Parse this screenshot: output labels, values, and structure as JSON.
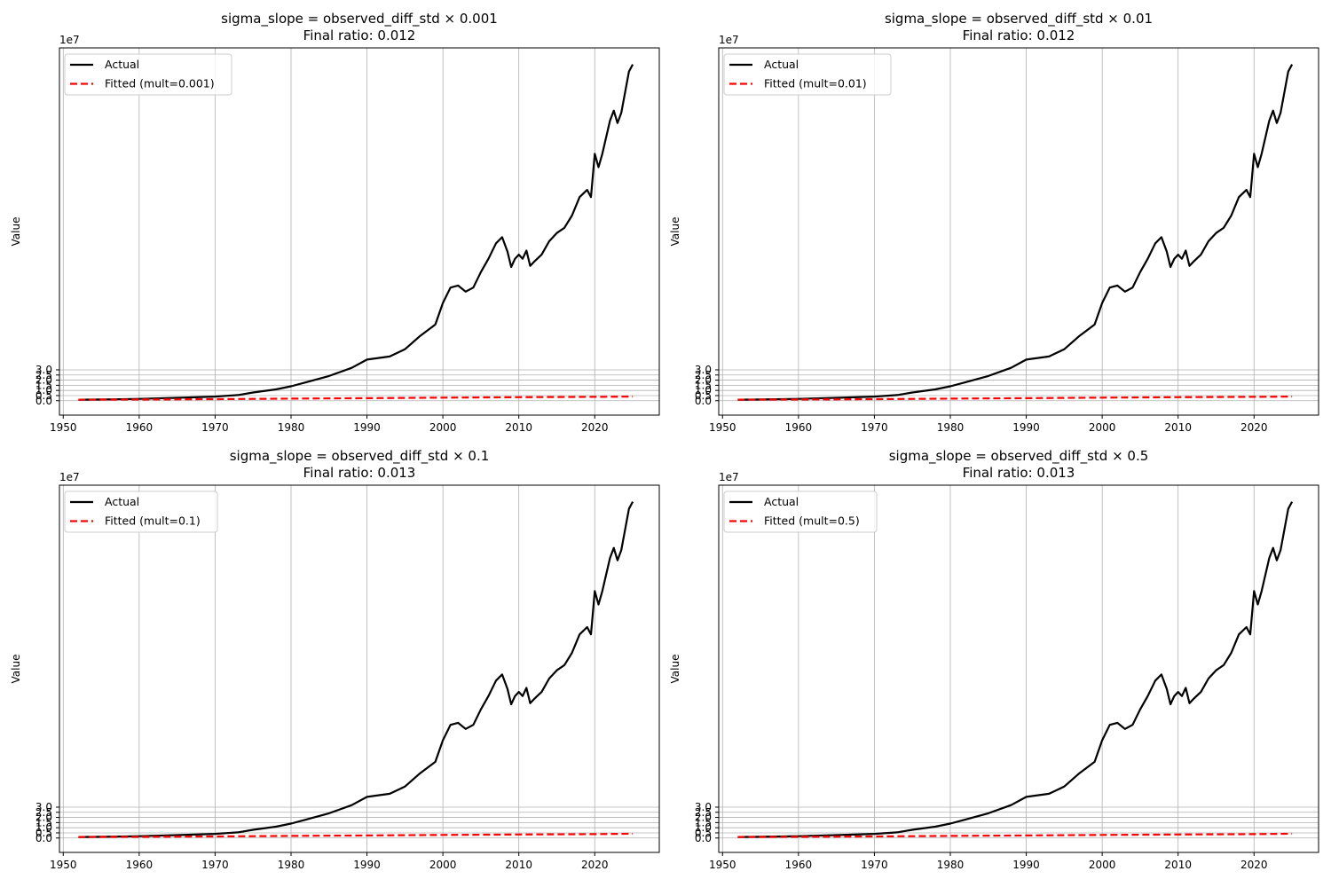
{
  "figure": {
    "colors": {
      "actual": "#000000",
      "fitted": "#ff0000",
      "grid": "#b0b0b0",
      "legend_border": "#cccccc"
    }
  },
  "chart_data": [
    {
      "type": "line",
      "title": "sigma_slope = observed_diff_std × 0.001",
      "subtitle": "Final ratio: 0.012",
      "ylabel": "Value",
      "xlabel": "",
      "offset_label": "1e7",
      "xlim": [
        1949.5,
        2028.5
      ],
      "ylim": [
        -1.4,
        34.3
      ],
      "x_ticks": [
        1950,
        1960,
        1970,
        1980,
        1990,
        2000,
        2010,
        2020
      ],
      "y_ticks": [
        0.0,
        0.5,
        1.0,
        1.5,
        2.0,
        2.5,
        3.0
      ],
      "y_tick_labels": [
        "0.0",
        "0.5",
        "1.0",
        "1.5",
        "2.0",
        "2.5",
        "3.0"
      ],
      "grid": true,
      "legend_position": "upper-left",
      "series": [
        {
          "name": "Actual",
          "style": "solid",
          "color": "#000000",
          "x": [
            1952,
            1955,
            1960,
            1965,
            1970,
            1973,
            1975,
            1978,
            1980,
            1982,
            1985,
            1988,
            1990,
            1993,
            1995,
            1997,
            1999,
            2000,
            2001,
            2002,
            2003,
            2004,
            2005,
            2006,
            2007,
            2007.8,
            2008.5,
            2009,
            2009.5,
            2010,
            2010.5,
            2011,
            2011.5,
            2012,
            2013,
            2014,
            2015,
            2016,
            2017,
            2018,
            2019,
            2019.5,
            2020,
            2020.5,
            2021,
            2022,
            2022.5,
            2023,
            2023.5,
            2024,
            2024.5,
            2025
          ],
          "y": [
            0.1,
            0.12,
            0.18,
            0.28,
            0.4,
            0.55,
            0.8,
            1.1,
            1.4,
            1.8,
            2.4,
            3.2,
            4.0,
            4.3,
            5.0,
            6.3,
            7.4,
            9.5,
            11.0,
            11.2,
            10.6,
            11.0,
            12.5,
            13.8,
            15.3,
            15.9,
            14.5,
            13.0,
            13.8,
            14.2,
            13.8,
            14.6,
            13.1,
            13.5,
            14.2,
            15.5,
            16.3,
            16.8,
            18.0,
            19.8,
            20.5,
            19.8,
            24.0,
            22.7,
            24.0,
            27.2,
            28.2,
            27.0,
            28.0,
            30.0,
            32.0,
            32.7
          ]
        },
        {
          "name": "Fitted (mult=0.001)",
          "style": "dashed",
          "color": "#ff0000",
          "x": [
            1952,
            1960,
            1970,
            1980,
            1990,
            2000,
            2010,
            2020,
            2025
          ],
          "y": [
            0.1,
            0.12,
            0.15,
            0.2,
            0.25,
            0.3,
            0.34,
            0.38,
            0.4
          ]
        }
      ]
    },
    {
      "type": "line",
      "title": "sigma_slope = observed_diff_std × 0.01",
      "subtitle": "Final ratio: 0.012",
      "ylabel": "Value",
      "xlabel": "",
      "offset_label": "1e7",
      "xlim": [
        1949.5,
        2028.5
      ],
      "ylim": [
        -1.4,
        34.3
      ],
      "x_ticks": [
        1950,
        1960,
        1970,
        1980,
        1990,
        2000,
        2010,
        2020
      ],
      "y_ticks": [
        0.0,
        0.5,
        1.0,
        1.5,
        2.0,
        2.5,
        3.0
      ],
      "y_tick_labels": [
        "0.0",
        "0.5",
        "1.0",
        "1.5",
        "2.0",
        "2.5",
        "3.0"
      ],
      "grid": true,
      "legend_position": "upper-left",
      "series": [
        {
          "name": "Actual",
          "style": "solid",
          "color": "#000000",
          "x": [
            1952,
            1955,
            1960,
            1965,
            1970,
            1973,
            1975,
            1978,
            1980,
            1982,
            1985,
            1988,
            1990,
            1993,
            1995,
            1997,
            1999,
            2000,
            2001,
            2002,
            2003,
            2004,
            2005,
            2006,
            2007,
            2007.8,
            2008.5,
            2009,
            2009.5,
            2010,
            2010.5,
            2011,
            2011.5,
            2012,
            2013,
            2014,
            2015,
            2016,
            2017,
            2018,
            2019,
            2019.5,
            2020,
            2020.5,
            2021,
            2022,
            2022.5,
            2023,
            2023.5,
            2024,
            2024.5,
            2025
          ],
          "y": [
            0.1,
            0.12,
            0.18,
            0.28,
            0.4,
            0.55,
            0.8,
            1.1,
            1.4,
            1.8,
            2.4,
            3.2,
            4.0,
            4.3,
            5.0,
            6.3,
            7.4,
            9.5,
            11.0,
            11.2,
            10.6,
            11.0,
            12.5,
            13.8,
            15.3,
            15.9,
            14.5,
            13.0,
            13.8,
            14.2,
            13.8,
            14.6,
            13.1,
            13.5,
            14.2,
            15.5,
            16.3,
            16.8,
            18.0,
            19.8,
            20.5,
            19.8,
            24.0,
            22.7,
            24.0,
            27.2,
            28.2,
            27.0,
            28.0,
            30.0,
            32.0,
            32.7
          ]
        },
        {
          "name": "Fitted (mult=0.01)",
          "style": "dashed",
          "color": "#ff0000",
          "x": [
            1952,
            1960,
            1970,
            1980,
            1990,
            2000,
            2010,
            2020,
            2025
          ],
          "y": [
            0.1,
            0.12,
            0.15,
            0.2,
            0.25,
            0.3,
            0.34,
            0.38,
            0.4
          ]
        }
      ]
    },
    {
      "type": "line",
      "title": "sigma_slope = observed_diff_std × 0.1",
      "subtitle": "Final ratio: 0.013",
      "ylabel": "Value",
      "xlabel": "",
      "offset_label": "1e7",
      "xlim": [
        1949.5,
        2028.5
      ],
      "ylim": [
        -1.4,
        34.3
      ],
      "x_ticks": [
        1950,
        1960,
        1970,
        1980,
        1990,
        2000,
        2010,
        2020
      ],
      "y_ticks": [
        0.0,
        0.5,
        1.0,
        1.5,
        2.0,
        2.5,
        3.0
      ],
      "y_tick_labels": [
        "0.0",
        "0.5",
        "1.0",
        "1.5",
        "2.0",
        "2.5",
        "3.0"
      ],
      "grid": true,
      "legend_position": "upper-left",
      "series": [
        {
          "name": "Actual",
          "style": "solid",
          "color": "#000000",
          "x": [
            1952,
            1955,
            1960,
            1965,
            1970,
            1973,
            1975,
            1978,
            1980,
            1982,
            1985,
            1988,
            1990,
            1993,
            1995,
            1997,
            1999,
            2000,
            2001,
            2002,
            2003,
            2004,
            2005,
            2006,
            2007,
            2007.8,
            2008.5,
            2009,
            2009.5,
            2010,
            2010.5,
            2011,
            2011.5,
            2012,
            2013,
            2014,
            2015,
            2016,
            2017,
            2018,
            2019,
            2019.5,
            2020,
            2020.5,
            2021,
            2022,
            2022.5,
            2023,
            2023.5,
            2024,
            2024.5,
            2025
          ],
          "y": [
            0.1,
            0.12,
            0.18,
            0.28,
            0.4,
            0.55,
            0.8,
            1.1,
            1.4,
            1.8,
            2.4,
            3.2,
            4.0,
            4.3,
            5.0,
            6.3,
            7.4,
            9.5,
            11.0,
            11.2,
            10.6,
            11.0,
            12.5,
            13.8,
            15.3,
            15.9,
            14.5,
            13.0,
            13.8,
            14.2,
            13.8,
            14.6,
            13.1,
            13.5,
            14.2,
            15.5,
            16.3,
            16.8,
            18.0,
            19.8,
            20.5,
            19.8,
            24.0,
            22.7,
            24.0,
            27.2,
            28.2,
            27.0,
            28.0,
            30.0,
            32.0,
            32.7
          ]
        },
        {
          "name": "Fitted (mult=0.1)",
          "style": "dashed",
          "color": "#ff0000",
          "x": [
            1952,
            1960,
            1970,
            1980,
            1990,
            2000,
            2010,
            2020,
            2025
          ],
          "y": [
            0.1,
            0.12,
            0.15,
            0.2,
            0.25,
            0.3,
            0.34,
            0.38,
            0.42
          ]
        }
      ]
    },
    {
      "type": "line",
      "title": "sigma_slope = observed_diff_std × 0.5",
      "subtitle": "Final ratio: 0.013",
      "ylabel": "Value",
      "xlabel": "",
      "offset_label": "1e7",
      "xlim": [
        1949.5,
        2028.5
      ],
      "ylim": [
        -1.4,
        34.3
      ],
      "x_ticks": [
        1950,
        1960,
        1970,
        1980,
        1990,
        2000,
        2010,
        2020
      ],
      "y_ticks": [
        0.0,
        0.5,
        1.0,
        1.5,
        2.0,
        2.5,
        3.0
      ],
      "y_tick_labels": [
        "0.0",
        "0.5",
        "1.0",
        "1.5",
        "2.0",
        "2.5",
        "3.0"
      ],
      "grid": true,
      "legend_position": "upper-left",
      "series": [
        {
          "name": "Actual",
          "style": "solid",
          "color": "#000000",
          "x": [
            1952,
            1955,
            1960,
            1965,
            1970,
            1973,
            1975,
            1978,
            1980,
            1982,
            1985,
            1988,
            1990,
            1993,
            1995,
            1997,
            1999,
            2000,
            2001,
            2002,
            2003,
            2004,
            2005,
            2006,
            2007,
            2007.8,
            2008.5,
            2009,
            2009.5,
            2010,
            2010.5,
            2011,
            2011.5,
            2012,
            2013,
            2014,
            2015,
            2016,
            2017,
            2018,
            2019,
            2019.5,
            2020,
            2020.5,
            2021,
            2022,
            2022.5,
            2023,
            2023.5,
            2024,
            2024.5,
            2025
          ],
          "y": [
            0.1,
            0.12,
            0.18,
            0.28,
            0.4,
            0.55,
            0.8,
            1.1,
            1.4,
            1.8,
            2.4,
            3.2,
            4.0,
            4.3,
            5.0,
            6.3,
            7.4,
            9.5,
            11.0,
            11.2,
            10.6,
            11.0,
            12.5,
            13.8,
            15.3,
            15.9,
            14.5,
            13.0,
            13.8,
            14.2,
            13.8,
            14.6,
            13.1,
            13.5,
            14.2,
            15.5,
            16.3,
            16.8,
            18.0,
            19.8,
            20.5,
            19.8,
            24.0,
            22.7,
            24.0,
            27.2,
            28.2,
            27.0,
            28.0,
            30.0,
            32.0,
            32.7
          ]
        },
        {
          "name": "Fitted (mult=0.5)",
          "style": "dashed",
          "color": "#ff0000",
          "x": [
            1952,
            1960,
            1970,
            1980,
            1990,
            2000,
            2010,
            2020,
            2025
          ],
          "y": [
            0.1,
            0.12,
            0.15,
            0.2,
            0.25,
            0.3,
            0.34,
            0.38,
            0.42
          ]
        }
      ]
    }
  ]
}
